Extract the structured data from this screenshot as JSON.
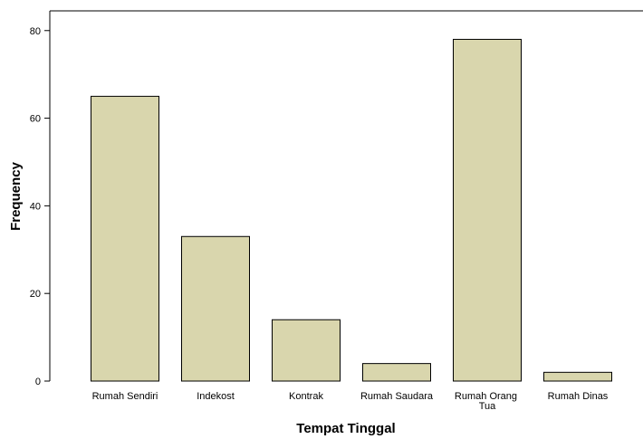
{
  "chart_data": {
    "type": "bar",
    "x_label": "Tempat Tinggal",
    "y_label": "Frequency",
    "categories": [
      "Rumah Sendiri",
      "Indekost",
      "Kontrak",
      "Rumah Saudara",
      "Rumah Orang Tua",
      "Rumah Dinas"
    ],
    "values": [
      65,
      33,
      14,
      4,
      78,
      2
    ],
    "color": "#d9d6ad",
    "ylim": [
      0,
      84.5
    ],
    "yticks": [
      0,
      20,
      40,
      60,
      80
    ],
    "grid": false
  }
}
